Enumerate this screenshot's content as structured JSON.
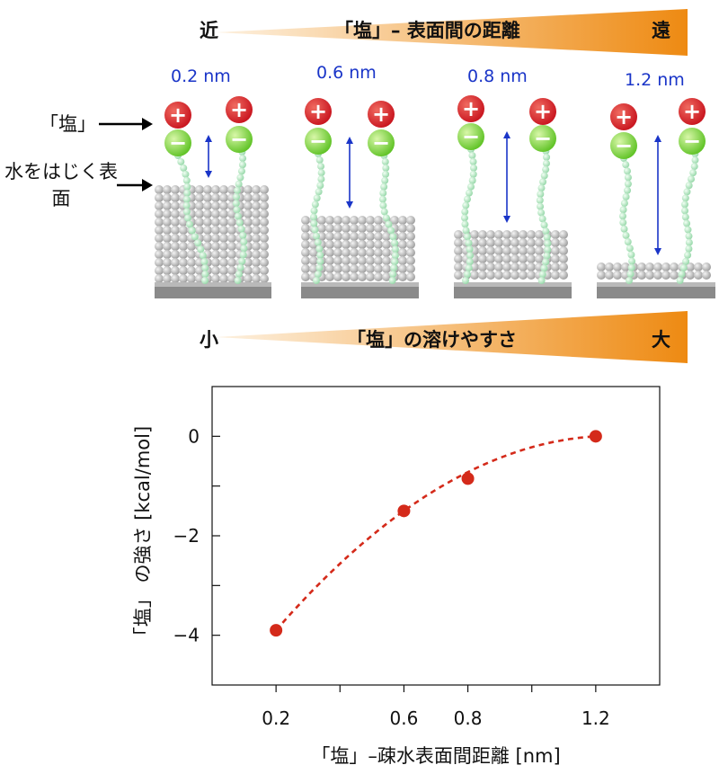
{
  "top_banner": {
    "left": "近",
    "center": "「塩」– 表面間の距離",
    "right": "遠",
    "gradient_colors": [
      "#fdf1e0",
      "#ee8a12"
    ]
  },
  "bottom_banner": {
    "left": "小",
    "center": "「塩」の溶けやすさ",
    "right": "大",
    "gradient_colors": [
      "#fdf1e0",
      "#ee8a12"
    ]
  },
  "labels": {
    "salt": "「塩」",
    "surface": "水をはじく表面"
  },
  "panels": [
    {
      "distance": "0.2 nm"
    },
    {
      "distance": "0.6 nm"
    },
    {
      "distance": "0.8 nm"
    },
    {
      "distance": "1.2 nm"
    }
  ],
  "ion_symbols": {
    "plus": "+",
    "minus": "−"
  },
  "colors": {
    "cation": "#c8141e",
    "anion": "#5ec224",
    "arrow": "#1a35c8",
    "chain": "#a8e0b8",
    "surface_bead": "#c4c4c4",
    "substrate": "#8a8a8a",
    "curve": "#d42a1a"
  },
  "chart_data": {
    "type": "scatter",
    "xlabel": "「塩」–疎水表面間距離 [nm]",
    "ylabel": "「塩」 の強さ [kcal/mol]",
    "x_ticks": [
      "0.2",
      "0.6",
      "0.8",
      "1.2"
    ],
    "y_ticks": [
      "0",
      "−2",
      "−4"
    ],
    "xlim": [
      0.0,
      1.4
    ],
    "ylim": [
      -5.0,
      1.0
    ],
    "points": [
      {
        "x": 0.2,
        "y": -3.9
      },
      {
        "x": 0.6,
        "y": -1.5
      },
      {
        "x": 0.8,
        "y": -0.85
      },
      {
        "x": 1.2,
        "y": 0.0
      }
    ],
    "fit_line": "dashed"
  }
}
